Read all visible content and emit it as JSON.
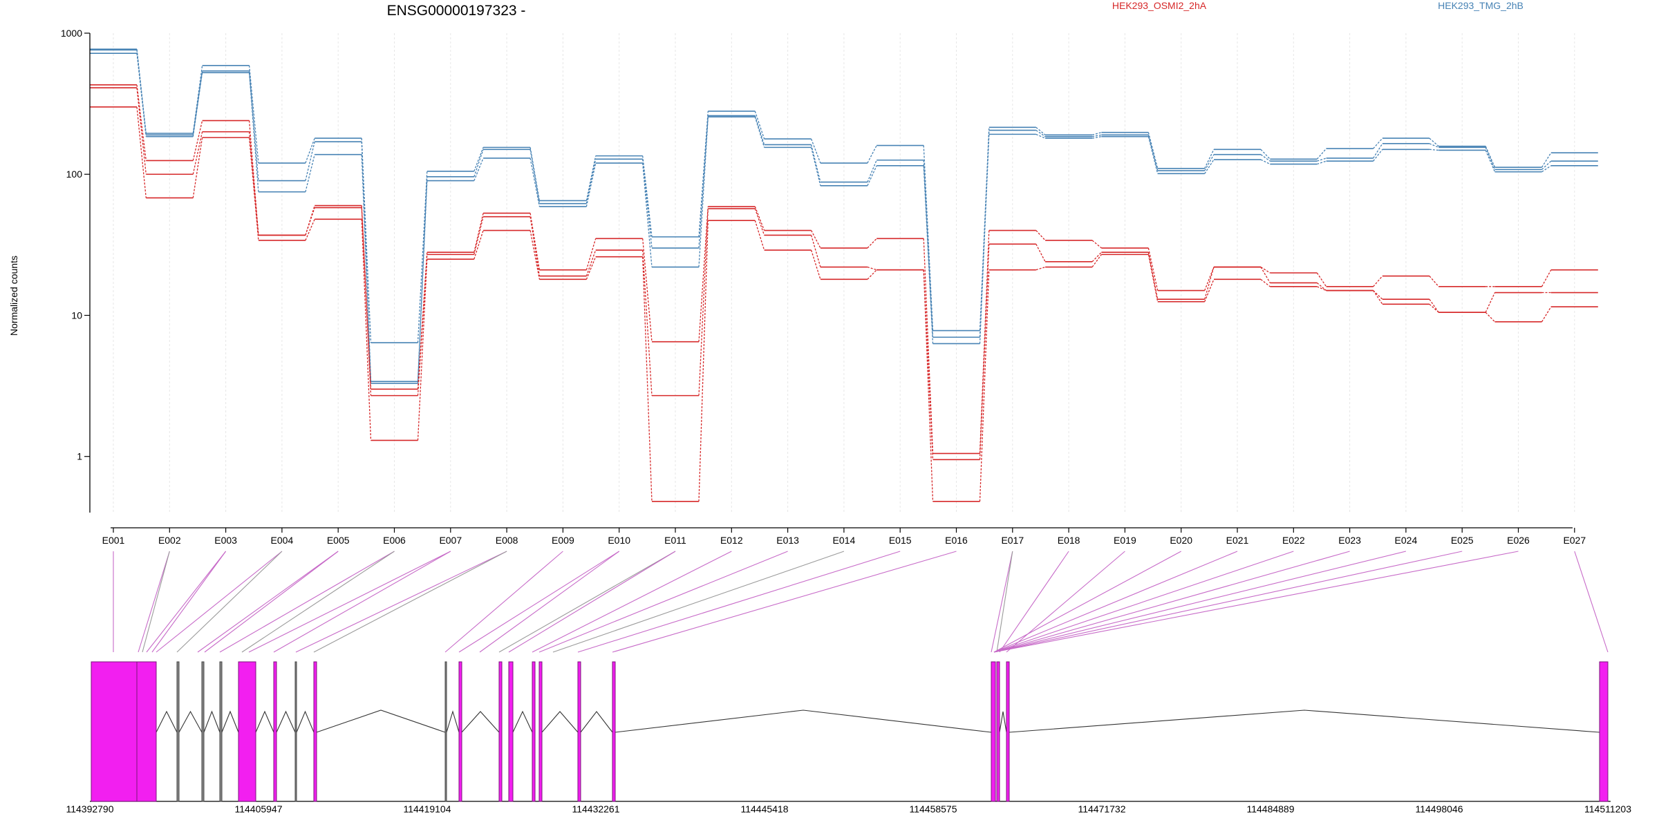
{
  "chart_data": {
    "type": "line",
    "title": "ENSG00000197323 -",
    "ylabel": "Normalized counts",
    "yscale": "log",
    "ylim": [
      0.4,
      1000
    ],
    "yticks": [
      "1000",
      "100",
      "10",
      "1"
    ],
    "grid": "vertical",
    "legend_placement": "top",
    "categories": [
      "E001",
      "E002",
      "E003",
      "E004",
      "E005",
      "E006",
      "E007",
      "E008",
      "E009",
      "E010",
      "E011",
      "E012",
      "E013",
      "E014",
      "E015",
      "E016",
      "E017",
      "E018",
      "E019",
      "E020",
      "E021",
      "E022",
      "E023",
      "E024",
      "E025",
      "E026",
      "E027"
    ],
    "legend": [
      {
        "label": "HEK293_OSMI2_2hA",
        "color": "#d62728"
      },
      {
        "label": "HEK293_TMG_2hB",
        "color": "#4682b4"
      }
    ],
    "series": [
      {
        "group": 1,
        "color": "#4682b4",
        "values": [
          770,
          195,
          590,
          120,
          180,
          6.4,
          105,
          155,
          65,
          135,
          36,
          280,
          178,
          120,
          160,
          7.8,
          215,
          190,
          198,
          110,
          150,
          128,
          152,
          180,
          158,
          112,
          142
        ]
      },
      {
        "group": 1,
        "color": "#4682b4",
        "values": [
          720,
          190,
          540,
          90,
          170,
          3.4,
          96,
          150,
          62,
          128,
          30,
          260,
          162,
          88,
          126,
          7.0,
          205,
          185,
          190,
          106,
          138,
          124,
          130,
          165,
          155,
          108,
          124
        ]
      },
      {
        "group": 1,
        "color": "#4682b4",
        "values": [
          760,
          185,
          525,
          75,
          138,
          3.3,
          90,
          130,
          59,
          120,
          22,
          255,
          155,
          83,
          115,
          6.3,
          192,
          180,
          185,
          101,
          127,
          118,
          124,
          150,
          148,
          104,
          115
        ]
      },
      {
        "group": 0,
        "color": "#d62728",
        "values": [
          430,
          125,
          240,
          37,
          60,
          3.0,
          28,
          53,
          21,
          35,
          6.5,
          59,
          40,
          30,
          35,
          1.05,
          40,
          34,
          30,
          15,
          22,
          20,
          16,
          19,
          16,
          16,
          21
        ]
      },
      {
        "group": 0,
        "color": "#d62728",
        "values": [
          410,
          100,
          200,
          37,
          58,
          2.7,
          27,
          50,
          19,
          29,
          2.7,
          57,
          37,
          22,
          21,
          0.95,
          32,
          24,
          28,
          13,
          22,
          17,
          15,
          13,
          10.5,
          14.5,
          14.5
        ]
      },
      {
        "group": 0,
        "color": "#d62728",
        "values": [
          300,
          68,
          182,
          34,
          48,
          1.3,
          25,
          40,
          18,
          26,
          0.48,
          47,
          29,
          18,
          21,
          0.48,
          21,
          22,
          27,
          12.5,
          18,
          16,
          15,
          12,
          10.5,
          9,
          11.5
        ]
      }
    ],
    "gene_model": {
      "coord_labels": [
        "114392790",
        "114405947",
        "114419104",
        "114432261",
        "114445418",
        "114458575",
        "114471732",
        "114484889",
        "114498046",
        "114511203"
      ],
      "coord_min": 114392790,
      "coord_max": 114511203
    }
  }
}
